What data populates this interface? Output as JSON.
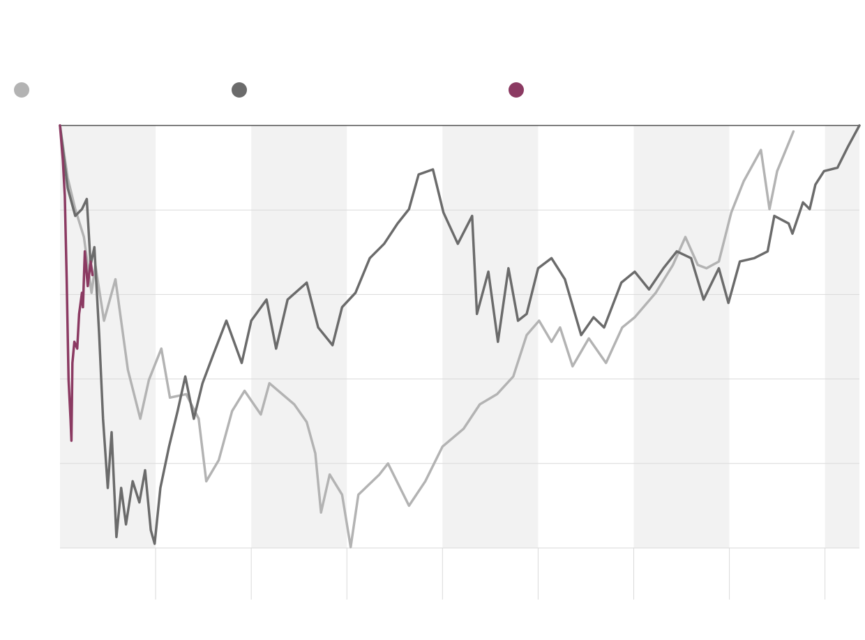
{
  "chart_data": {
    "type": "line",
    "xlim": [
      0,
      8.36
    ],
    "xticks": [
      1,
      2,
      3,
      4,
      5,
      6,
      7,
      8
    ],
    "ylim": [
      -50,
      0
    ],
    "yticks": [
      -50,
      -40,
      -30,
      -20,
      -10,
      0
    ],
    "grid": true,
    "shaded_bands": true,
    "series": [
      {
        "color": "#b3b3b3",
        "x": [
          0,
          0.08,
          0.16,
          0.25,
          0.33,
          0.37,
          0.46,
          0.58,
          0.71,
          0.84,
          0.93,
          1.06,
          1.15,
          1.32,
          1.45,
          1.53,
          1.66,
          1.8,
          1.93,
          2.1,
          2.19,
          2.45,
          2.58,
          2.67,
          2.73,
          2.82,
          2.95,
          3.04,
          3.12,
          3.34,
          3.43,
          3.65,
          3.82,
          4.0,
          4.22,
          4.39,
          4.57,
          4.74,
          4.88,
          5.01,
          5.14,
          5.23,
          5.36,
          5.53,
          5.71,
          5.88,
          6.01,
          6.23,
          6.41,
          6.54,
          6.67,
          6.76,
          6.89,
          7.02,
          7.15,
          7.33,
          7.42,
          7.5,
          7.67
        ],
        "values": [
          0,
          -6.2,
          -9.9,
          -13.2,
          -19.8,
          -16.5,
          -23.1,
          -18.2,
          -28.9,
          -34.7,
          -30.1,
          -26.4,
          -32.2,
          -31.8,
          -34.7,
          -42.1,
          -39.6,
          -33.8,
          -31.4,
          -34.2,
          -30.5,
          -33.0,
          -35.1,
          -38.8,
          -45.8,
          -41.3,
          -43.7,
          -49.9,
          -43.7,
          -41.3,
          -40.0,
          -45.0,
          -42.1,
          -38.0,
          -35.9,
          -33.0,
          -31.8,
          -29.7,
          -24.8,
          -23.1,
          -25.6,
          -23.9,
          -28.5,
          -25.2,
          -28.1,
          -23.9,
          -22.7,
          -19.8,
          -16.5,
          -13.2,
          -16.5,
          -16.9,
          -16.1,
          -10.3,
          -6.6,
          -2.9,
          -9.9,
          -5.4,
          -0.7
        ]
      },
      {
        "color": "#6b6b6b",
        "x": [
          0,
          0.08,
          0.16,
          0.23,
          0.28,
          0.32,
          0.36,
          0.41,
          0.45,
          0.5,
          0.54,
          0.59,
          0.64,
          0.69,
          0.76,
          0.83,
          0.89,
          0.95,
          0.99,
          1.05,
          1.14,
          1.23,
          1.31,
          1.4,
          1.49,
          1.6,
          1.74,
          1.9,
          2.0,
          2.16,
          2.26,
          2.38,
          2.58,
          2.7,
          2.85,
          2.95,
          3.09,
          3.24,
          3.39,
          3.53,
          3.65,
          3.75,
          3.9,
          4.01,
          4.16,
          4.31,
          4.36,
          4.48,
          4.58,
          4.69,
          4.79,
          4.88,
          5.0,
          5.14,
          5.28,
          5.45,
          5.58,
          5.69,
          5.87,
          6.01,
          6.16,
          6.31,
          6.45,
          6.6,
          6.73,
          6.89,
          6.99,
          7.11,
          7.26,
          7.4,
          7.47,
          7.62,
          7.66,
          7.77,
          7.84,
          7.9,
          7.99,
          8.13,
          8.24,
          8.36
        ],
        "values": [
          0,
          -7.4,
          -10.7,
          -9.9,
          -8.7,
          -16.5,
          -14.4,
          -24.8,
          -34.7,
          -42.9,
          -36.3,
          -48.7,
          -42.9,
          -47.2,
          -42.1,
          -44.6,
          -40.8,
          -47.9,
          -49.5,
          -42.9,
          -38.0,
          -33.8,
          -29.7,
          -34.7,
          -30.5,
          -27.2,
          -23.1,
          -28.1,
          -23.1,
          -20.6,
          -26.4,
          -20.6,
          -18.6,
          -23.9,
          -26.0,
          -21.5,
          -19.8,
          -15.7,
          -14.0,
          -11.6,
          -9.9,
          -5.8,
          -5.2,
          -10.3,
          -14.0,
          -10.7,
          -22.3,
          -17.3,
          -25.6,
          -16.9,
          -23.1,
          -22.3,
          -16.9,
          -15.7,
          -18.2,
          -24.8,
          -22.7,
          -23.9,
          -18.6,
          -17.3,
          -19.4,
          -16.9,
          -14.9,
          -15.7,
          -20.6,
          -16.9,
          -21.0,
          -16.1,
          -15.7,
          -14.9,
          -10.7,
          -11.6,
          -12.8,
          -9.1,
          -9.9,
          -7.0,
          -5.4,
          -5.0,
          -2.5,
          0
        ]
      },
      {
        "color": "#8b3a62",
        "x": [
          0,
          0.03,
          0.05,
          0.07,
          0.09,
          0.11,
          0.12,
          0.13,
          0.15,
          0.18,
          0.2,
          0.23,
          0.24,
          0.26,
          0.29,
          0.32,
          0.34
        ],
        "values": [
          0,
          -4.1,
          -8.3,
          -18.2,
          -30.1,
          -34.7,
          -37.3,
          -28.1,
          -25.6,
          -26.4,
          -22.3,
          -19.8,
          -21.5,
          -14.9,
          -19.0,
          -16.1,
          -17.7
        ]
      }
    ]
  }
}
